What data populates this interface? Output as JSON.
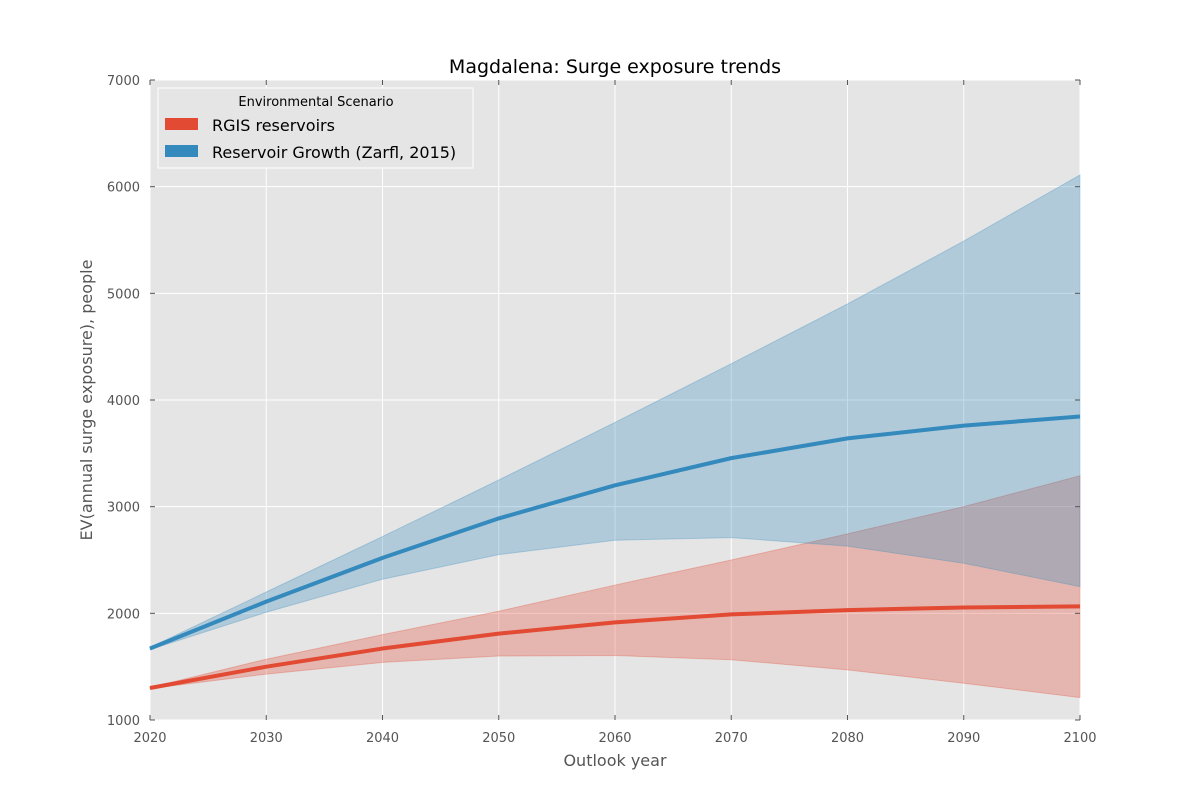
{
  "chart_data": {
    "type": "area",
    "title": "Magdalena: Surge exposure trends",
    "xlabel": "Outlook year",
    "ylabel": "EV(annual surge exposure), people",
    "x": [
      2020,
      2030,
      2040,
      2050,
      2060,
      2070,
      2080,
      2090,
      2100
    ],
    "xlim": [
      2020,
      2100
    ],
    "ylim": [
      1000,
      7000
    ],
    "xticks": [
      "2020",
      "2030",
      "2040",
      "2050",
      "2060",
      "2070",
      "2080",
      "2090",
      "2100"
    ],
    "yticks": [
      "1000",
      "2000",
      "3000",
      "4000",
      "5000",
      "6000",
      "7000"
    ],
    "grid": true,
    "legend": {
      "title": "Environmental Scenario",
      "placement": "top-left"
    },
    "series": [
      {
        "name": "RGIS reservoirs",
        "color": "#E24A33",
        "values": [
          1300,
          1500,
          1670,
          1810,
          1915,
          1990,
          2030,
          2055,
          2065
        ],
        "lower": [
          1295,
          1430,
          1540,
          1600,
          1605,
          1565,
          1470,
          1345,
          1210
        ],
        "upper": [
          1305,
          1570,
          1800,
          2020,
          2265,
          2500,
          2745,
          3000,
          3290
        ]
      },
      {
        "name": "Reservoir Growth (Zarfl, 2015)",
        "color": "#348ABD",
        "values": [
          1670,
          2110,
          2520,
          2890,
          3200,
          3455,
          3640,
          3760,
          3845
        ],
        "lower": [
          1660,
          2010,
          2320,
          2550,
          2685,
          2710,
          2630,
          2470,
          2250
        ],
        "upper": [
          1680,
          2200,
          2720,
          3250,
          3790,
          4340,
          4900,
          5490,
          6110
        ]
      }
    ]
  }
}
